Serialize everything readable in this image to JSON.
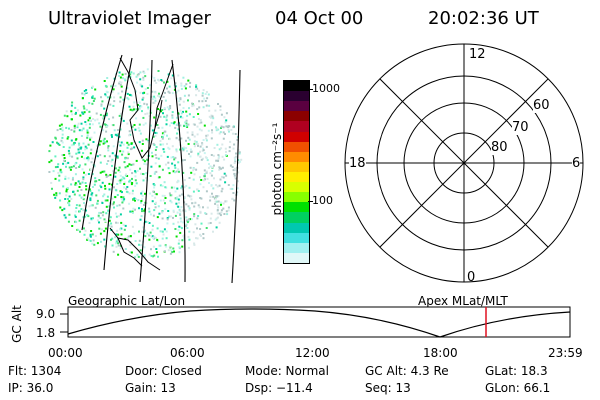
{
  "header": {
    "instrument": "Ultraviolet Imager",
    "date": "04 Oct 00",
    "time": "20:02:36 UT"
  },
  "colorbar": {
    "label": "photon cm⁻²s⁻¹",
    "ticks": [
      "1000",
      "100"
    ],
    "colors": [
      "#000000",
      "#2a0030",
      "#5a0040",
      "#8b0000",
      "#b00020",
      "#d00000",
      "#f05000",
      "#ff8c00",
      "#ffc800",
      "#ffee00",
      "#d8ff00",
      "#88ff00",
      "#00e000",
      "#00d060",
      "#00c8b0",
      "#40e0e0",
      "#a0f0f0",
      "#e0f8f8"
    ]
  },
  "apex_plot": {
    "labels": {
      "top": "12",
      "bottom": "0",
      "left": "18",
      "right": "6"
    },
    "lat_labels": [
      "60",
      "70",
      "80"
    ]
  },
  "timeline": {
    "left_title": "Geographic Lat/Lon",
    "right_title": "Apex MLat/MLT",
    "axis_label": "GC Alt",
    "y_top": "9.0",
    "y_bottom": "1.8",
    "x_ticks": [
      "00:00",
      "06:00",
      "12:00",
      "18:00",
      "23:59"
    ],
    "marker_color": "#e01020"
  },
  "info": {
    "row1": {
      "flt": "Flt: 1304",
      "door": "Door: Closed",
      "mode": "Mode: Normal",
      "gcalt": "GC Alt: 4.3 Re",
      "glat": "GLat: 18.3"
    },
    "row2": {
      "ip": "IP: 36.0",
      "gain": "Gain: 13",
      "dsp": "Dsp: −11.4",
      "seq": "Seq: 13",
      "glon": "GLon: 66.1"
    }
  }
}
